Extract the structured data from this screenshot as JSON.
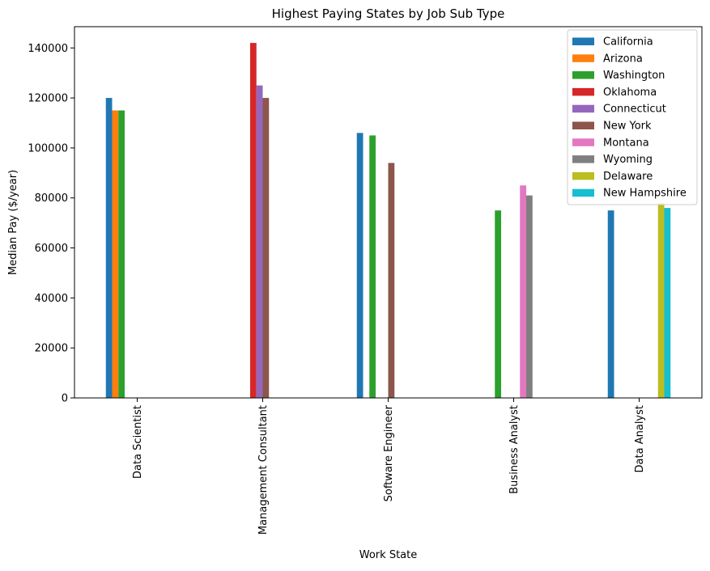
{
  "chart_data": {
    "type": "bar",
    "title": "Highest Paying States by Job Sub Type",
    "xlabel": "Work State",
    "ylabel": "Median Pay ($/year)",
    "ylim": [
      0,
      148500
    ],
    "yticks": [
      0,
      20000,
      40000,
      60000,
      80000,
      100000,
      120000,
      140000
    ],
    "grid": false,
    "legend_position": "top-right",
    "categories": [
      "Data Scientist",
      "Management Consultant",
      "Software Engineer",
      "Business Analyst",
      "Data Analyst"
    ],
    "series": [
      {
        "name": "California",
        "color": "#1f77b4",
        "values": [
          120000,
          null,
          106000,
          null,
          75000
        ]
      },
      {
        "name": "Arizona",
        "color": "#ff7f0e",
        "values": [
          115000,
          null,
          null,
          null,
          null
        ]
      },
      {
        "name": "Washington",
        "color": "#2ca02c",
        "values": [
          115000,
          null,
          105000,
          75000,
          null
        ]
      },
      {
        "name": "Oklahoma",
        "color": "#d62728",
        "values": [
          null,
          142000,
          null,
          null,
          null
        ]
      },
      {
        "name": "Connecticut",
        "color": "#9467bd",
        "values": [
          null,
          125000,
          null,
          null,
          null
        ]
      },
      {
        "name": "New York",
        "color": "#8c564b",
        "values": [
          null,
          120000,
          94000,
          null,
          null
        ]
      },
      {
        "name": "Montana",
        "color": "#e377c2",
        "values": [
          null,
          null,
          null,
          85000,
          null
        ]
      },
      {
        "name": "Wyoming",
        "color": "#7f7f7f",
        "values": [
          null,
          null,
          null,
          81000,
          null
        ]
      },
      {
        "name": "Delaware",
        "color": "#bcbd22",
        "values": [
          null,
          null,
          null,
          null,
          78000
        ]
      },
      {
        "name": "New Hampshire",
        "color": "#17becf",
        "values": [
          null,
          null,
          null,
          null,
          76000
        ]
      }
    ]
  }
}
